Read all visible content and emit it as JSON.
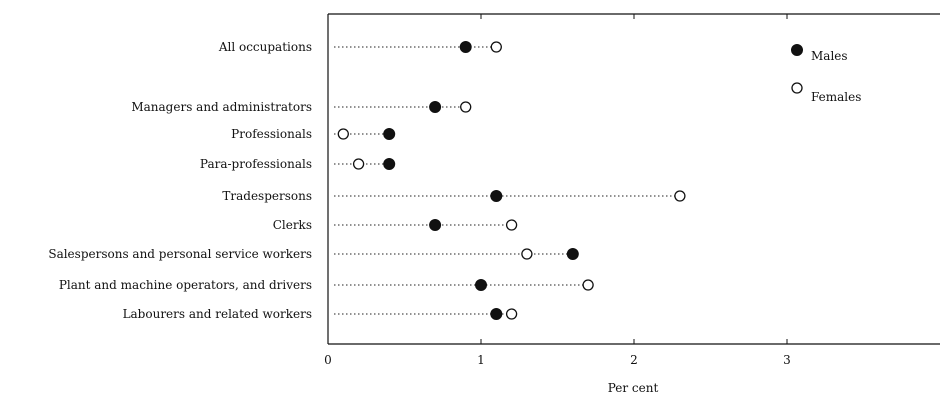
{
  "chart_data": {
    "type": "scatter",
    "title": "",
    "xlabel": "Per cent",
    "ylabel": "",
    "xlim": [
      0,
      4
    ],
    "x_ticks": [
      "0",
      "1",
      "2",
      "3"
    ],
    "categories": [
      "All occupations",
      "Managers and administrators",
      "Professionals",
      "Para-professionals",
      "Tradespersons",
      "Clerks",
      "Salespersons and personal service workers",
      "Plant and machine operators, and drivers",
      "Labourers and related workers"
    ],
    "series": [
      {
        "name": "Males",
        "marker": "filled-circle",
        "values": [
          0.9,
          0.7,
          0.4,
          0.4,
          1.1,
          0.7,
          1.6,
          1.0,
          1.1
        ]
      },
      {
        "name": "Females",
        "marker": "open-circle",
        "values": [
          1.1,
          0.9,
          0.1,
          0.2,
          2.3,
          1.2,
          1.3,
          1.7,
          1.2
        ]
      }
    ],
    "legend": "top-right",
    "grid": false,
    "colors": {
      "ink": "#111111",
      "background": "#ffffff"
    }
  }
}
